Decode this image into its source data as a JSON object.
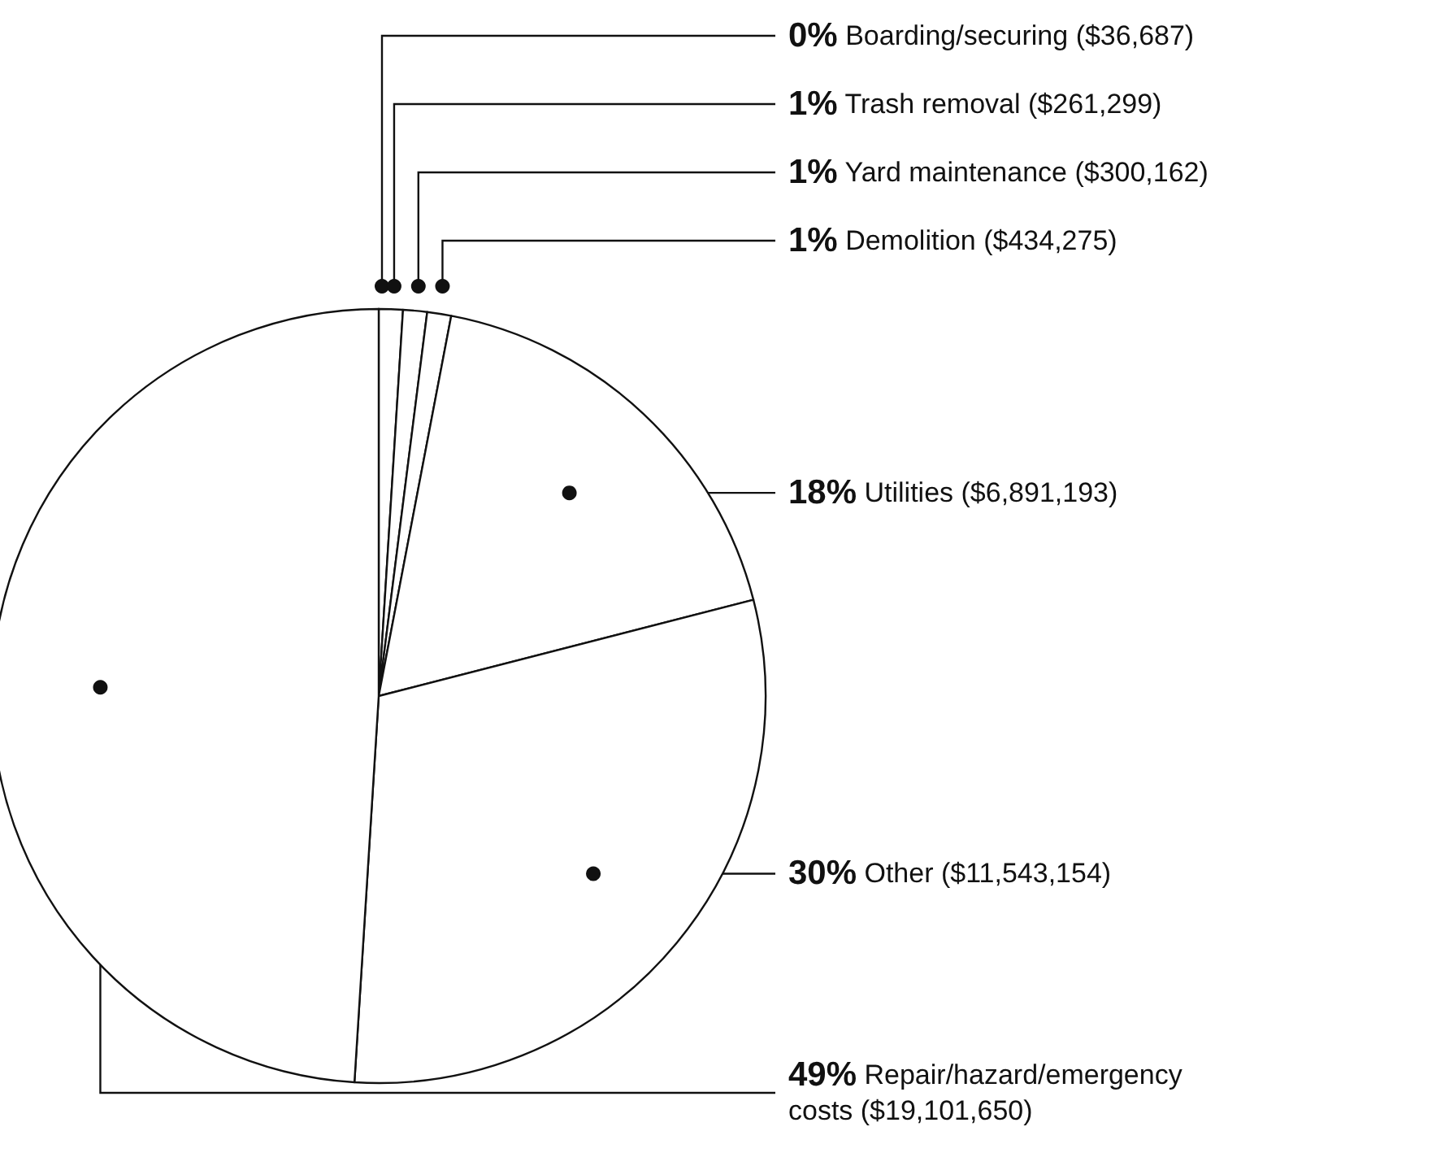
{
  "chart_data": {
    "type": "pie",
    "categories": [
      "Boarding/securing ($36,687)",
      "Trash removal ($261,299)",
      "Yard maintenance ($300,162)",
      "Demolition ($434,275)",
      "Utilities ($6,891,193)",
      "Other ($11,543,154)",
      "Repair/hazard/emergency costs ($19,101,650)"
    ],
    "values": [
      0,
      1,
      1,
      1,
      18,
      30,
      49
    ],
    "colors": [
      "#ffffff",
      "#ffffff",
      "#ffffff",
      "#ffffff",
      "#ffffff",
      "#ffffff",
      "#ffffff"
    ],
    "value_labels": [
      "0%",
      "1%",
      "1%",
      "1%",
      "18%",
      "30%",
      "49%"
    ]
  }
}
